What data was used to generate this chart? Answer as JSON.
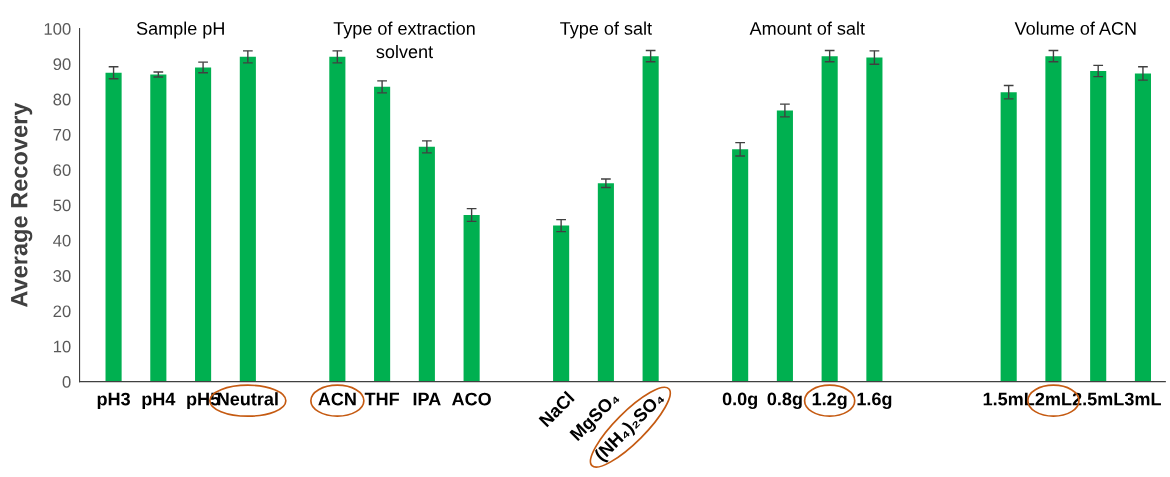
{
  "chart_data": {
    "type": "bar",
    "ylabel": "Average Recovery",
    "categories": [
      "pH3",
      "pH4",
      "pH5",
      "Neutral",
      null,
      "ACN",
      "THF",
      "IPA",
      "ACO",
      null,
      "NaCl",
      "MgSO₄",
      "(NH₄)₂SO₄",
      null,
      "0.0g",
      "0.8g",
      "1.2g",
      "1.6g",
      null,
      null,
      "1.5mL",
      "2mL",
      "2.5mL",
      "3mL"
    ],
    "values": [
      87.5,
      87,
      89,
      92,
      null,
      92,
      83.5,
      66.5,
      47.2,
      null,
      44.2,
      56.2,
      92.2,
      null,
      65.8,
      76.8,
      92.2,
      91.8,
      null,
      null,
      82,
      92.2,
      88,
      87.3
    ],
    "errors": [
      1.7,
      0.7,
      1.5,
      1.7,
      null,
      1.7,
      1.7,
      1.7,
      1.8,
      null,
      1.7,
      1.2,
      1.6,
      null,
      1.9,
      1.8,
      1.6,
      1.9,
      null,
      null,
      1.9,
      1.6,
      1.6,
      1.9
    ],
    "color": "#00b050",
    "ylim": [
      0,
      100
    ],
    "yticks": [
      0,
      10,
      20,
      30,
      40,
      50,
      60,
      70,
      80,
      90,
      100
    ],
    "annotations": [
      "Sample pH",
      "Type of extraction\nsolvent",
      "Type of salt",
      "Amount of salt",
      "Volume of ACN"
    ],
    "grid": false,
    "legend": false
  }
}
